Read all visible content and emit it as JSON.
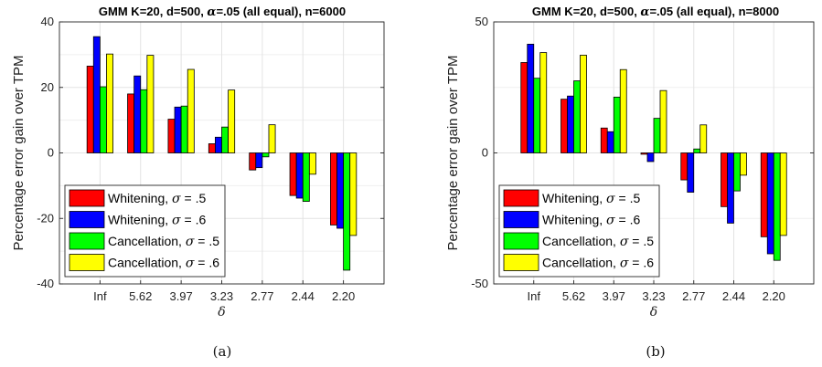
{
  "chart_data": [
    {
      "type": "bar",
      "title": "GMM K=20, d=500,  α=.05 (all equal), n=6000",
      "xlabel": "δ",
      "ylabel": "Percentage error gain over TPM",
      "caption": "(a)",
      "categories": [
        "Inf",
        "5.62",
        "3.97",
        "3.23",
        "2.77",
        "2.44",
        "2.20"
      ],
      "ylim": [
        -40,
        40
      ],
      "yticks": [
        "-40",
        "-20",
        "0",
        "20",
        "40"
      ],
      "grid": true,
      "legend_position": "lower-left",
      "series": [
        {
          "name": "Whitening, σ = .5",
          "color": "#ff0000",
          "values": [
            26.5,
            18,
            10.3,
            2.8,
            -5.2,
            -13,
            -22
          ]
        },
        {
          "name": "Whitening, σ = .6",
          "color": "#0000ff",
          "values": [
            35.5,
            23.5,
            14,
            4.8,
            -4.5,
            -13.8,
            -23
          ]
        },
        {
          "name": "Cancellation, σ = .5",
          "color": "#00ff00",
          "values": [
            20.2,
            19.3,
            14.3,
            7.9,
            -1.2,
            -14.8,
            -35.8
          ]
        },
        {
          "name": "Cancellation, σ = .6",
          "color": "#ffff00",
          "values": [
            30.2,
            29.8,
            25.5,
            19.2,
            8.6,
            -6.5,
            -25.2
          ]
        }
      ]
    },
    {
      "type": "bar",
      "title": "GMM K=20, d=500,  α=.05 (all equal), n=8000",
      "xlabel": "δ",
      "ylabel": "Percentage error gain over TPM",
      "caption": "(b)",
      "categories": [
        "Inf",
        "5.62",
        "3.97",
        "3.23",
        "2.77",
        "2.44",
        "2.20"
      ],
      "ylim": [
        -50,
        50
      ],
      "yticks": [
        "-50",
        "0",
        "50"
      ],
      "grid": true,
      "legend_position": "lower-left",
      "series": [
        {
          "name": "Whitening, σ = .5",
          "color": "#ff0000",
          "values": [
            34.5,
            20.5,
            9.5,
            -0.5,
            -10.3,
            -20.5,
            -32
          ]
        },
        {
          "name": "Whitening, σ = .6",
          "color": "#0000ff",
          "values": [
            41.5,
            21.7,
            8.1,
            -3.3,
            -15,
            -26.8,
            -38.5
          ]
        },
        {
          "name": "Cancellation, σ = .5",
          "color": "#00ff00",
          "values": [
            28.5,
            27.5,
            21.3,
            13.2,
            1.5,
            -14.5,
            -41
          ]
        },
        {
          "name": "Cancellation, σ = .6",
          "color": "#ffff00",
          "values": [
            38.3,
            37.3,
            31.8,
            23.8,
            10.7,
            -8.5,
            -31.5
          ]
        }
      ]
    }
  ]
}
